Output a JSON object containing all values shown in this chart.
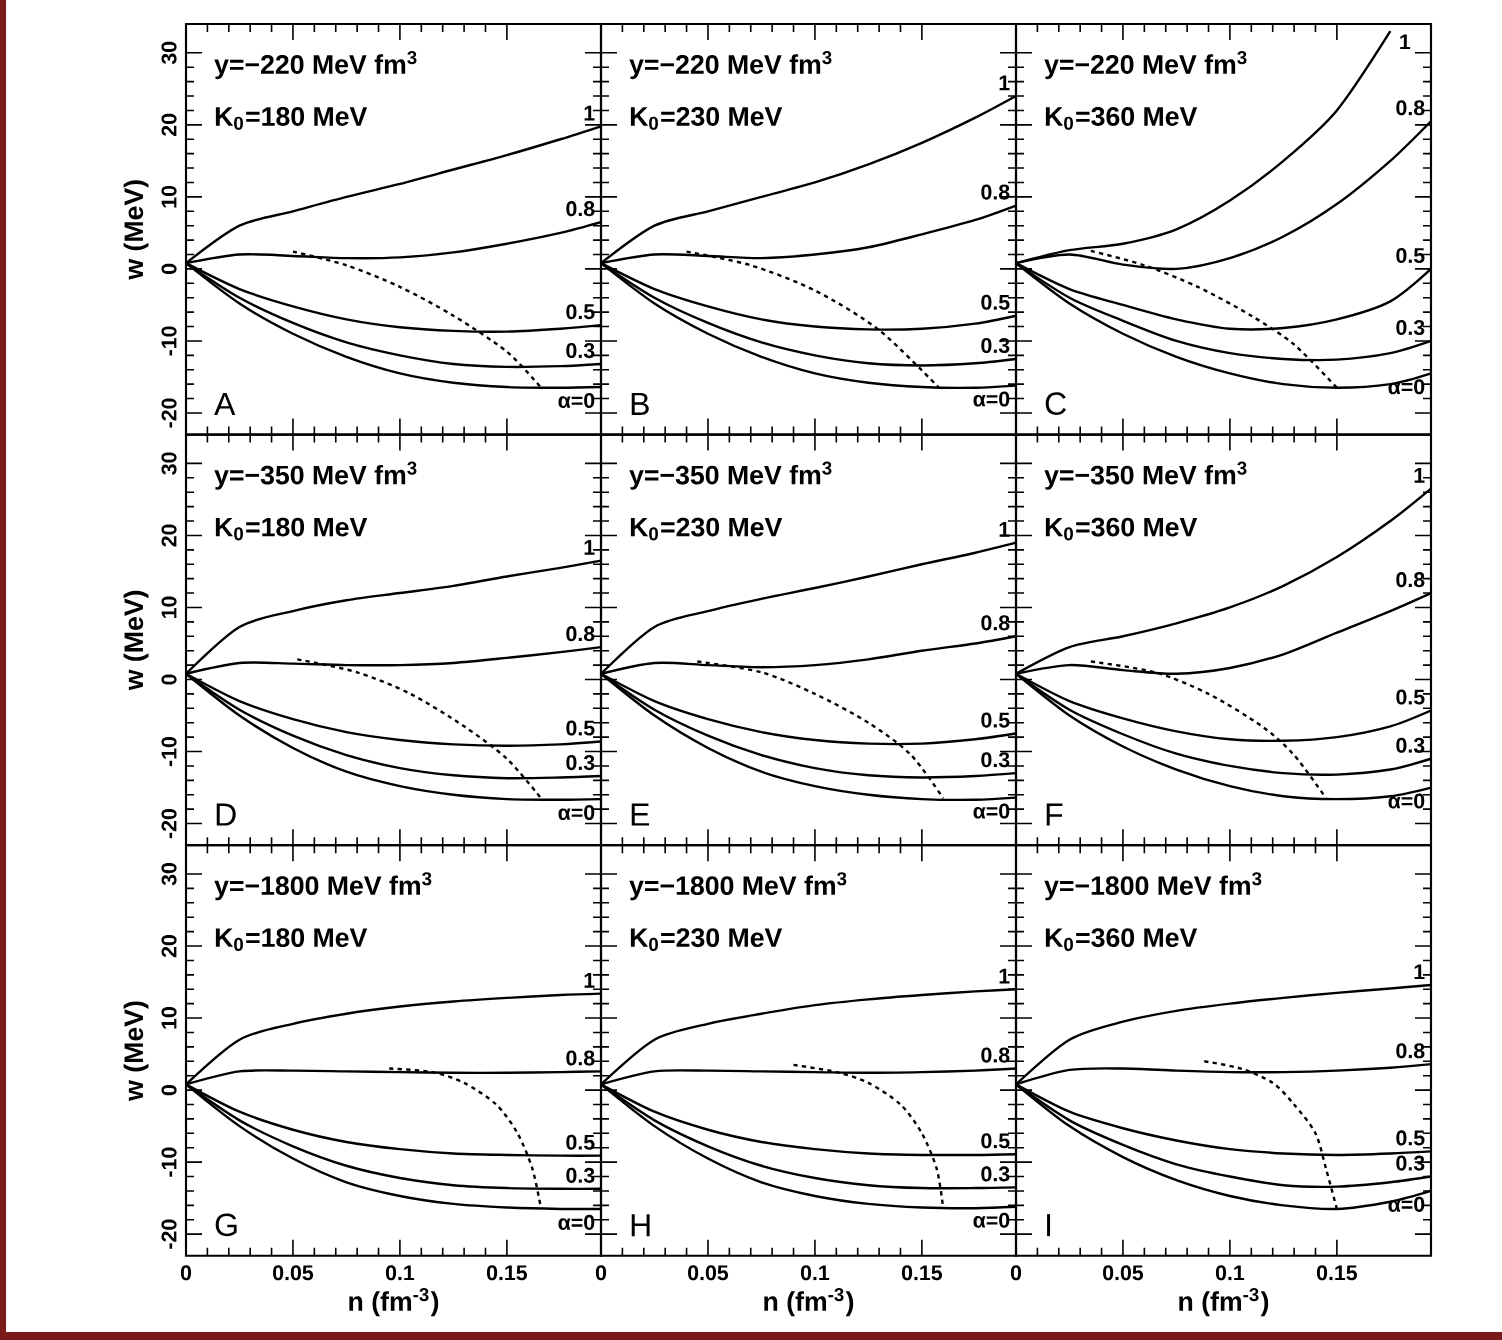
{
  "chart_data": [
    {
      "type": "line",
      "ylabel": "w (MeV)",
      "annotations": [
        "y=−220 MeV fm$^{3}$",
        "K$_{0}$=180 MeV",
        "A"
      ],
      "legend": "right",
      "xlim": [
        0,
        0.194
      ],
      "ylim": [
        -23,
        34
      ],
      "xticks": [
        0,
        0.05,
        0.1,
        0.15
      ],
      "yticks": [
        -20,
        -10,
        0,
        10,
        20,
        30
      ],
      "tick_labels": "y",
      "x": [
        0,
        0.025,
        0.05,
        0.075,
        0.1,
        0.125,
        0.15,
        0.175,
        0.194
      ],
      "series": [
        {
          "name": "α=0",
          "color": "#000000",
          "values": [
            0.8,
            -4.8,
            -9,
            -12.2,
            -14.5,
            -15.8,
            -16.4,
            -16.5,
            -16.4
          ]
        },
        {
          "name": "0.3",
          "color": "#000000",
          "values": [
            0.8,
            -4,
            -7.5,
            -10.2,
            -12,
            -13.2,
            -13.6,
            -13.5,
            -13.2
          ]
        },
        {
          "name": "0.5",
          "color": "#000000",
          "values": [
            0.8,
            -2.8,
            -5.2,
            -7,
            -8.1,
            -8.6,
            -8.7,
            -8.3,
            -7.8
          ]
        },
        {
          "name": "0.8",
          "color": "#000000",
          "values": [
            0.8,
            2,
            1.8,
            1.5,
            1.6,
            2.3,
            3.5,
            5,
            6.5
          ]
        },
        {
          "name": "1",
          "color": "#000000",
          "values": [
            0.8,
            6,
            8,
            10,
            11.8,
            13.8,
            15.8,
            18,
            19.8
          ]
        },
        {
          "color": "#000000",
          "line_style": "dotted",
          "x": [
            0.05,
            0.075,
            0.1,
            0.125,
            0.15,
            0.166
          ],
          "values": [
            2.4,
            0.5,
            -2.5,
            -6.5,
            -11.5,
            -16.5
          ]
        }
      ]
    },
    {
      "type": "line",
      "annotations": [
        "y=−220 MeV fm$^{3}$",
        "K$_{0}$=230 MeV",
        "B"
      ],
      "legend": "right",
      "xlim": [
        0,
        0.194
      ],
      "ylim": [
        -23,
        34
      ],
      "xticks": [
        0,
        0.05,
        0.1,
        0.15
      ],
      "yticks": [
        -20,
        -10,
        0,
        10,
        20,
        30
      ],
      "tick_labels": false,
      "x": [
        0,
        0.025,
        0.05,
        0.075,
        0.1,
        0.125,
        0.15,
        0.175,
        0.194
      ],
      "series": [
        {
          "name": "α=0",
          "color": "#000000",
          "values": [
            0.8,
            -4.8,
            -9,
            -12.2,
            -14.5,
            -15.8,
            -16.4,
            -16.5,
            -16.2
          ]
        },
        {
          "name": "0.3",
          "color": "#000000",
          "values": [
            0.8,
            -4,
            -7.5,
            -10.2,
            -12,
            -13.1,
            -13.4,
            -13.1,
            -12.5
          ]
        },
        {
          "name": "0.5",
          "color": "#000000",
          "values": [
            0.8,
            -2.8,
            -5.2,
            -7,
            -8,
            -8.4,
            -8.3,
            -7.6,
            -6.5
          ]
        },
        {
          "name": "0.8",
          "color": "#000000",
          "values": [
            0.8,
            2,
            1.8,
            1.5,
            2,
            3,
            4.8,
            6.8,
            8.8
          ]
        },
        {
          "name": "1",
          "color": "#000000",
          "values": [
            0.8,
            6,
            8,
            10,
            12,
            14.5,
            17.5,
            21,
            24
          ]
        },
        {
          "color": "#000000",
          "line_style": "dotted",
          "x": [
            0.04,
            0.07,
            0.1,
            0.13,
            0.158
          ],
          "values": [
            2.4,
            0.5,
            -3,
            -8.5,
            -16.5
          ]
        }
      ]
    },
    {
      "type": "line",
      "annotations": [
        "y=−220 MeV fm$^{3}$",
        "K$_{0}$=360 MeV",
        "C"
      ],
      "legend": "right",
      "xlim": [
        0,
        0.194
      ],
      "ylim": [
        -23,
        34
      ],
      "xticks": [
        0,
        0.05,
        0.1,
        0.15
      ],
      "yticks": [
        -20,
        -10,
        0,
        10,
        20,
        30
      ],
      "tick_labels": false,
      "x": [
        0,
        0.025,
        0.05,
        0.075,
        0.1,
        0.125,
        0.15,
        0.175,
        0.194
      ],
      "series": [
        {
          "name": "α=0",
          "color": "#000000",
          "values": [
            0.8,
            -4.8,
            -9,
            -12.2,
            -14.5,
            -16,
            -16.5,
            -16,
            -14.5
          ]
        },
        {
          "name": "0.3",
          "color": "#000000",
          "values": [
            0.8,
            -4,
            -7.2,
            -10,
            -11.7,
            -12.5,
            -12.6,
            -11.7,
            -10
          ]
        },
        {
          "name": "0.5",
          "color": "#000000",
          "values": [
            0.8,
            -2.8,
            -5,
            -7,
            -8.3,
            -8.2,
            -7,
            -4.5,
            0
          ]
        },
        {
          "name": "0.8",
          "color": "#000000",
          "values": [
            0.8,
            2,
            0.6,
            0,
            1.5,
            4.5,
            9,
            15,
            20.5
          ]
        },
        {
          "name": "1",
          "color": "#000000",
          "x": [
            0,
            0.025,
            0.05,
            0.075,
            0.1,
            0.125,
            0.15,
            0.175
          ],
          "values": [
            0.8,
            2.6,
            3.5,
            5.5,
            9.5,
            15,
            22,
            33
          ]
        },
        {
          "color": "#000000",
          "line_style": "dotted",
          "x": [
            0.035,
            0.06,
            0.085,
            0.11,
            0.13,
            0.15
          ],
          "values": [
            2.5,
            0.5,
            -2.5,
            -6.5,
            -10.5,
            -16.5
          ]
        }
      ]
    },
    {
      "type": "line",
      "ylabel": "w (MeV)",
      "annotations": [
        "y=−350 MeV fm$^{3}$",
        "K$_{0}$=180 MeV",
        "D"
      ],
      "legend": "right",
      "xlim": [
        0,
        0.194
      ],
      "ylim": [
        -23,
        34
      ],
      "xticks": [
        0,
        0.05,
        0.1,
        0.15
      ],
      "yticks": [
        -20,
        -10,
        0,
        10,
        20,
        30
      ],
      "tick_labels": "y",
      "x": [
        0,
        0.025,
        0.05,
        0.075,
        0.1,
        0.125,
        0.15,
        0.175,
        0.194
      ],
      "series": [
        {
          "name": "α=0",
          "color": "#000000",
          "values": [
            0.8,
            -5,
            -9.5,
            -12.8,
            -14.8,
            -16,
            -16.6,
            -16.7,
            -16.6
          ]
        },
        {
          "name": "0.3",
          "color": "#000000",
          "values": [
            0.8,
            -4.2,
            -7.8,
            -10.5,
            -12.3,
            -13.3,
            -13.7,
            -13.6,
            -13.4
          ]
        },
        {
          "name": "0.5",
          "color": "#000000",
          "values": [
            0.8,
            -3,
            -5.5,
            -7.3,
            -8.4,
            -9,
            -9.2,
            -9,
            -8.6
          ]
        },
        {
          "name": "0.8",
          "color": "#000000",
          "values": [
            0.8,
            2.3,
            2.2,
            2,
            2,
            2.3,
            3,
            3.8,
            4.5
          ]
        },
        {
          "name": "1",
          "color": "#000000",
          "values": [
            0.8,
            7.3,
            9.5,
            11,
            12,
            13,
            14.3,
            15.5,
            16.5
          ]
        },
        {
          "color": "#000000",
          "line_style": "dotted",
          "x": [
            0.052,
            0.08,
            0.105,
            0.13,
            0.15,
            0.166
          ],
          "values": [
            2.8,
            1,
            -2,
            -6.5,
            -11,
            -16.5
          ]
        }
      ]
    },
    {
      "type": "line",
      "annotations": [
        "y=−350 MeV fm$^{3}$",
        "K$_{0}$=230 MeV",
        "E"
      ],
      "legend": "right",
      "xlim": [
        0,
        0.194
      ],
      "ylim": [
        -23,
        34
      ],
      "xticks": [
        0,
        0.05,
        0.1,
        0.15
      ],
      "yticks": [
        -20,
        -10,
        0,
        10,
        20,
        30
      ],
      "tick_labels": false,
      "x": [
        0,
        0.025,
        0.05,
        0.075,
        0.1,
        0.125,
        0.15,
        0.175,
        0.194
      ],
      "series": [
        {
          "name": "α=0",
          "color": "#000000",
          "values": [
            0.8,
            -5,
            -9.5,
            -12.8,
            -14.8,
            -16,
            -16.6,
            -16.7,
            -16.4
          ]
        },
        {
          "name": "0.3",
          "color": "#000000",
          "values": [
            0.8,
            -4.2,
            -7.8,
            -10.5,
            -12.3,
            -13.3,
            -13.6,
            -13.4,
            -13
          ]
        },
        {
          "name": "0.5",
          "color": "#000000",
          "values": [
            0.8,
            -3,
            -5.5,
            -7.3,
            -8.4,
            -8.9,
            -8.9,
            -8.3,
            -7.5
          ]
        },
        {
          "name": "0.8",
          "color": "#000000",
          "values": [
            0.8,
            2.3,
            2,
            1.7,
            2,
            2.8,
            4,
            5,
            6
          ]
        },
        {
          "name": "1",
          "color": "#000000",
          "values": [
            0.8,
            7.3,
            9.5,
            11.2,
            12.7,
            14.3,
            16,
            17.6,
            19
          ]
        },
        {
          "color": "#000000",
          "line_style": "dotted",
          "x": [
            0.045,
            0.075,
            0.1,
            0.125,
            0.145,
            0.16
          ],
          "values": [
            2.5,
            1,
            -2,
            -6,
            -10.5,
            -16.5
          ]
        }
      ]
    },
    {
      "type": "line",
      "annotations": [
        "y=−350 MeV fm$^{3}$",
        "K$_{0}$=360 MeV",
        "F"
      ],
      "legend": "right",
      "xlim": [
        0,
        0.194
      ],
      "ylim": [
        -23,
        34
      ],
      "xticks": [
        0,
        0.05,
        0.1,
        0.15
      ],
      "yticks": [
        -20,
        -10,
        0,
        10,
        20,
        30
      ],
      "tick_labels": false,
      "x": [
        0,
        0.025,
        0.05,
        0.075,
        0.1,
        0.125,
        0.15,
        0.175,
        0.194
      ],
      "series": [
        {
          "name": "α=0",
          "color": "#000000",
          "values": [
            0.8,
            -5,
            -9.3,
            -12.5,
            -14.8,
            -16.2,
            -16.6,
            -16.2,
            -15
          ]
        },
        {
          "name": "0.3",
          "color": "#000000",
          "values": [
            0.8,
            -4.2,
            -7.6,
            -10.3,
            -12,
            -13,
            -13.2,
            -12.5,
            -11
          ]
        },
        {
          "name": "0.5",
          "color": "#000000",
          "values": [
            0.8,
            -3,
            -5.4,
            -7.2,
            -8.3,
            -8.5,
            -8,
            -6.5,
            -4.3
          ]
        },
        {
          "name": "0.8",
          "color": "#000000",
          "values": [
            0.8,
            2,
            1.3,
            0.8,
            1.6,
            3.5,
            6.5,
            9.5,
            12
          ]
        },
        {
          "name": "1",
          "color": "#000000",
          "values": [
            0.8,
            4.5,
            6,
            7.8,
            10,
            13,
            17,
            22,
            26.5
          ]
        },
        {
          "color": "#000000",
          "line_style": "dotted",
          "x": [
            0.035,
            0.065,
            0.09,
            0.115,
            0.13,
            0.145
          ],
          "values": [
            2.5,
            1,
            -2,
            -6.5,
            -10.5,
            -16.5
          ]
        }
      ]
    },
    {
      "type": "line",
      "xlabel": "n (fm$^{-3}$)",
      "ylabel": "w (MeV)",
      "annotations": [
        "y=−1800 MeV fm$^{3}$",
        "K$_{0}$=180 MeV",
        "G"
      ],
      "legend": "right",
      "xlim": [
        0,
        0.194
      ],
      "ylim": [
        -23,
        34
      ],
      "xticks": [
        0,
        0.05,
        0.1,
        0.15
      ],
      "yticks": [
        -20,
        -10,
        0,
        10,
        20,
        30
      ],
      "x": [
        0,
        0.025,
        0.05,
        0.075,
        0.1,
        0.125,
        0.15,
        0.175,
        0.194
      ],
      "series": [
        {
          "name": "α=0",
          "color": "#000000",
          "values": [
            0.8,
            -5,
            -9.5,
            -12.8,
            -14.7,
            -15.8,
            -16.3,
            -16.5,
            -16.5
          ]
        },
        {
          "name": "0.3",
          "color": "#000000",
          "values": [
            0.8,
            -4.2,
            -7.8,
            -10.5,
            -12.2,
            -13.2,
            -13.6,
            -13.7,
            -13.7
          ]
        },
        {
          "name": "0.5",
          "color": "#000000",
          "values": [
            0.8,
            -3,
            -5.5,
            -7.2,
            -8.2,
            -8.8,
            -9,
            -9.1,
            -9.1
          ]
        },
        {
          "name": "0.8",
          "color": "#000000",
          "values": [
            0.8,
            2.6,
            2.7,
            2.6,
            2.5,
            2.4,
            2.4,
            2.5,
            2.6
          ]
        },
        {
          "name": "1",
          "color": "#000000",
          "values": [
            0.8,
            7,
            9.2,
            10.6,
            11.6,
            12.3,
            12.8,
            13.2,
            13.4
          ]
        },
        {
          "color": "#000000",
          "line_style": "dotted",
          "x": [
            0.095,
            0.115,
            0.13,
            0.145,
            0.155,
            0.162,
            0.166
          ],
          "values": [
            3,
            2.5,
            1,
            -2,
            -6,
            -11,
            -16.5
          ]
        }
      ]
    },
    {
      "type": "line",
      "xlabel": "n (fm$^{-3}$)",
      "annotations": [
        "y=−1800 MeV fm$^{3}$",
        "K$_{0}$=230 MeV",
        "H"
      ],
      "legend": "right",
      "xlim": [
        0,
        0.194
      ],
      "ylim": [
        -23,
        34
      ],
      "xticks": [
        0,
        0.05,
        0.1,
        0.15
      ],
      "yticks": [
        -20,
        -10,
        0,
        10,
        20,
        30
      ],
      "tick_labels": "x",
      "x": [
        0,
        0.025,
        0.05,
        0.075,
        0.1,
        0.125,
        0.15,
        0.175,
        0.194
      ],
      "series": [
        {
          "name": "α=0",
          "color": "#000000",
          "values": [
            0.8,
            -5,
            -9.5,
            -12.8,
            -14.7,
            -15.8,
            -16.3,
            -16.4,
            -16.2
          ]
        },
        {
          "name": "0.3",
          "color": "#000000",
          "values": [
            0.8,
            -4.2,
            -7.8,
            -10.5,
            -12.2,
            -13.2,
            -13.6,
            -13.6,
            -13.5
          ]
        },
        {
          "name": "0.5",
          "color": "#000000",
          "values": [
            0.8,
            -3,
            -5.5,
            -7.2,
            -8.2,
            -8.8,
            -9,
            -9,
            -8.9
          ]
        },
        {
          "name": "0.8",
          "color": "#000000",
          "values": [
            0.8,
            2.6,
            2.7,
            2.6,
            2.5,
            2.4,
            2.5,
            2.7,
            3
          ]
        },
        {
          "name": "1",
          "color": "#000000",
          "values": [
            0.8,
            7,
            9.2,
            10.6,
            11.8,
            12.6,
            13.2,
            13.7,
            14
          ]
        },
        {
          "color": "#000000",
          "line_style": "dotted",
          "x": [
            0.09,
            0.11,
            0.125,
            0.14,
            0.15,
            0.157,
            0.16
          ],
          "values": [
            3.5,
            2.5,
            1,
            -2,
            -6,
            -11,
            -16.5
          ]
        }
      ]
    },
    {
      "type": "line",
      "xlabel": "n (fm$^{-3}$)",
      "annotations": [
        "y=−1800 MeV fm$^{3}$",
        "K$_{0}$=360 MeV",
        "I"
      ],
      "legend": "right",
      "xlim": [
        0,
        0.194
      ],
      "ylim": [
        -23,
        34
      ],
      "xticks": [
        0,
        0.05,
        0.1,
        0.15
      ],
      "yticks": [
        -20,
        -10,
        0,
        10,
        20,
        30
      ],
      "tick_labels": "x",
      "x": [
        0,
        0.025,
        0.05,
        0.075,
        0.1,
        0.125,
        0.15,
        0.175,
        0.194
      ],
      "series": [
        {
          "name": "α=0",
          "color": "#000000",
          "values": [
            0.8,
            -5,
            -9.3,
            -12.5,
            -14.7,
            -16,
            -16.5,
            -15.5,
            -14
          ]
        },
        {
          "name": "0.3",
          "color": "#000000",
          "values": [
            0.8,
            -4.2,
            -7.6,
            -10.3,
            -12,
            -13.2,
            -13.4,
            -12.8,
            -12
          ]
        },
        {
          "name": "0.5",
          "color": "#000000",
          "values": [
            0.8,
            -3,
            -5.3,
            -7,
            -8.2,
            -8.8,
            -9,
            -8.8,
            -8.5
          ]
        },
        {
          "name": "0.8",
          "color": "#000000",
          "values": [
            0.8,
            2.8,
            3,
            2.7,
            2.5,
            2.5,
            2.7,
            3.1,
            3.6
          ]
        },
        {
          "name": "1",
          "color": "#000000",
          "values": [
            0.8,
            7,
            9.5,
            11,
            12,
            12.8,
            13.5,
            14.1,
            14.6
          ]
        },
        {
          "color": "#000000",
          "line_style": "dotted",
          "x": [
            0.088,
            0.105,
            0.12,
            0.13,
            0.14,
            0.145,
            0.15
          ],
          "values": [
            4,
            3,
            1,
            -2,
            -6,
            -11,
            -16.5
          ]
        }
      ]
    }
  ]
}
